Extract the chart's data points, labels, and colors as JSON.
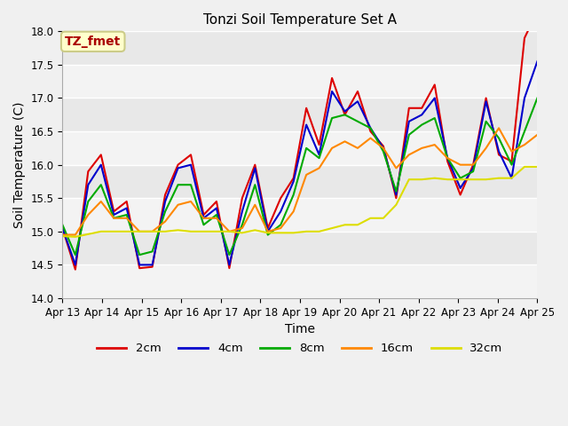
{
  "title": "Tonzi Soil Temperature Set A",
  "xlabel": "Time",
  "ylabel": "Soil Temperature (C)",
  "ylim": [
    14.0,
    18.0
  ],
  "annotation": "TZ_fmet",
  "annotation_color": "#aa0000",
  "annotation_bg": "#ffffcc",
  "annotation_edge": "#cccc88",
  "bg_color": "#f0f0f0",
  "plot_bg": "#e8e8e8",
  "grid_color": "#ffffff",
  "series_keys": [
    "2cm",
    "4cm",
    "8cm",
    "16cm",
    "32cm"
  ],
  "series_colors": [
    "#dd0000",
    "#0000cc",
    "#00aa00",
    "#ff8800",
    "#dddd00"
  ],
  "x_ticks": [
    "Apr 13",
    "Apr 14",
    "Apr 15",
    "Apr 16",
    "Apr 17",
    "Apr 18",
    "Apr 19",
    "Apr 20",
    "Apr 21",
    "Apr 22",
    "Apr 23",
    "Apr 24",
    "Apr 25"
  ],
  "data_2cm": [
    15.05,
    14.43,
    15.9,
    16.15,
    15.3,
    15.45,
    14.45,
    14.47,
    15.55,
    16.0,
    16.15,
    15.25,
    15.45,
    14.45,
    15.5,
    16.0,
    15.05,
    15.5,
    15.8,
    16.85,
    16.3,
    17.3,
    16.75,
    17.1,
    16.5,
    16.28,
    15.5,
    16.85,
    16.85,
    17.2,
    16.05,
    15.55,
    16.0,
    17.0,
    16.15,
    16.05,
    17.9,
    18.3
  ],
  "data_4cm": [
    15.05,
    14.5,
    15.7,
    16.0,
    15.25,
    15.35,
    14.5,
    14.5,
    15.45,
    15.95,
    16.0,
    15.2,
    15.35,
    14.5,
    15.3,
    15.95,
    15.0,
    15.3,
    15.75,
    16.6,
    16.15,
    17.1,
    16.8,
    16.95,
    16.55,
    16.25,
    15.55,
    16.65,
    16.75,
    17.0,
    16.1,
    15.65,
    15.95,
    16.95,
    16.2,
    15.8,
    17.0,
    17.55
  ],
  "data_8cm": [
    15.1,
    14.65,
    15.45,
    15.7,
    15.2,
    15.25,
    14.65,
    14.7,
    15.3,
    15.7,
    15.7,
    15.1,
    15.25,
    14.65,
    15.1,
    15.7,
    14.95,
    15.1,
    15.55,
    16.25,
    16.1,
    16.7,
    16.75,
    16.65,
    16.55,
    16.2,
    15.6,
    16.45,
    16.6,
    16.7,
    16.1,
    15.8,
    15.9,
    16.65,
    16.4,
    16.0,
    16.5,
    17.0
  ],
  "data_16cm": [
    14.95,
    14.95,
    15.25,
    15.45,
    15.2,
    15.2,
    15.0,
    15.0,
    15.15,
    15.4,
    15.45,
    15.2,
    15.2,
    15.0,
    15.05,
    15.4,
    15.0,
    15.05,
    15.3,
    15.85,
    15.95,
    16.25,
    16.35,
    16.25,
    16.4,
    16.25,
    15.95,
    16.15,
    16.25,
    16.3,
    16.1,
    16.0,
    16.0,
    16.25,
    16.55,
    16.2,
    16.3,
    16.45
  ],
  "data_32cm": [
    14.93,
    14.92,
    14.96,
    15.0,
    15.0,
    15.0,
    15.0,
    15.0,
    15.0,
    15.02,
    15.0,
    15.0,
    15.0,
    15.0,
    14.98,
    15.02,
    14.98,
    14.98,
    14.98,
    15.0,
    15.0,
    15.05,
    15.1,
    15.1,
    15.2,
    15.2,
    15.4,
    15.78,
    15.78,
    15.8,
    15.78,
    15.78,
    15.78,
    15.78,
    15.8,
    15.8,
    15.97,
    15.97
  ]
}
